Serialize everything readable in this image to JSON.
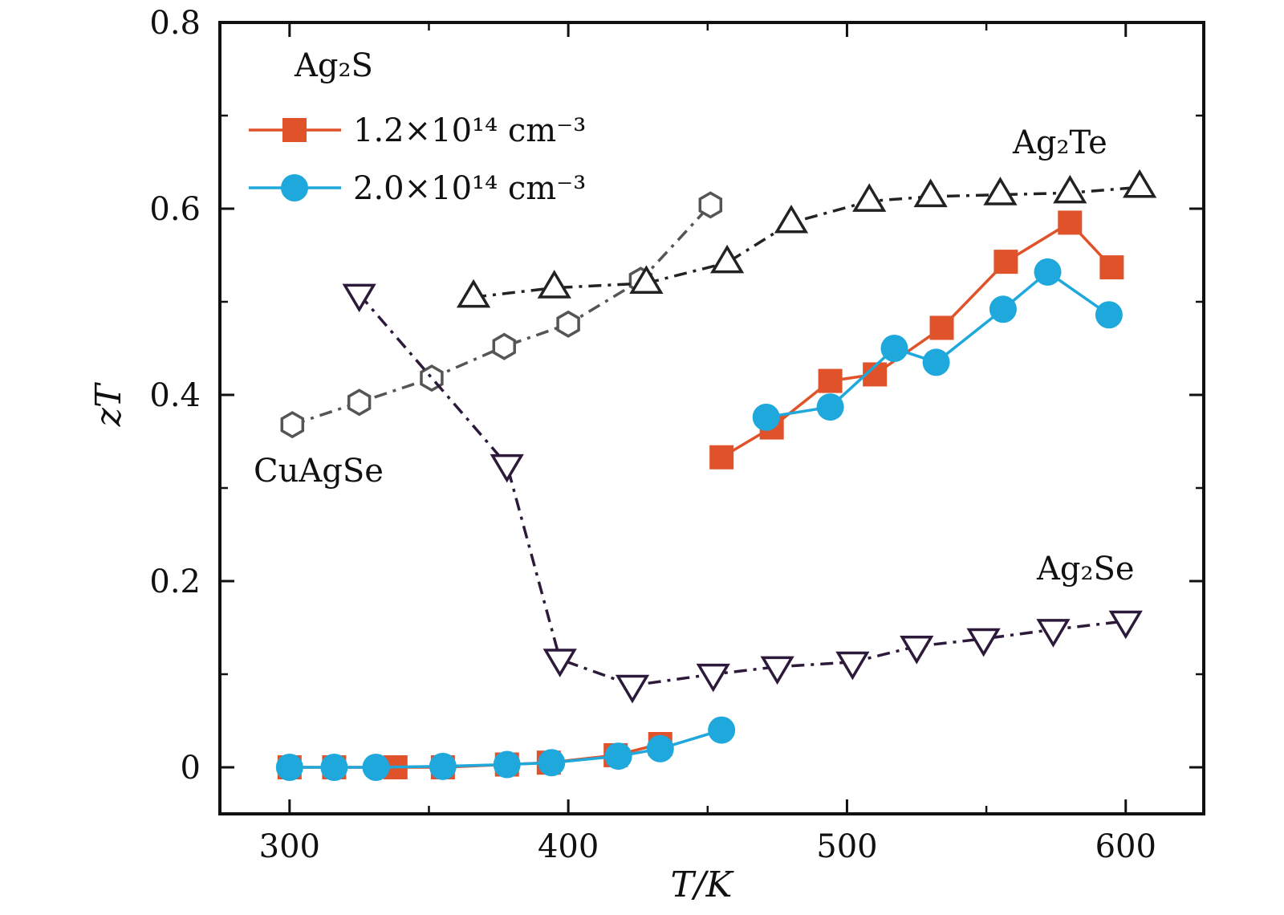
{
  "chart_data": {
    "type": "line",
    "xlabel": "T/K",
    "ylabel": "zT",
    "xlim": [
      275,
      628
    ],
    "ylim": [
      -0.05,
      0.8
    ],
    "xticks": [
      300,
      400,
      500,
      600
    ],
    "xtick_labels": [
      "300",
      "400",
      "500",
      "600"
    ],
    "yticks": [
      0,
      0.2,
      0.4,
      0.6,
      0.8
    ],
    "ytick_labels": [
      "0",
      "0.2",
      "0.4",
      "0.6",
      "0.8"
    ],
    "grid": false,
    "legend": {
      "placement": "top-left",
      "title": "Ag₂S",
      "entries": [
        "1.2×10¹⁴ cm⁻³",
        "2.0×10¹⁴ cm⁻³"
      ]
    },
    "annotations": [
      {
        "text": "CuAgSe"
      },
      {
        "text": "Ag₂Te"
      },
      {
        "text": "Ag₂Se"
      }
    ],
    "series": [
      {
        "name": "1.2×10¹⁴ cm⁻³",
        "color": "#e0522a",
        "marker": "square-filled",
        "segments": [
          {
            "x": [
              300,
              316,
              338,
              355,
              378,
              393,
              417,
              433
            ],
            "y": [
              0.0,
              0.0,
              0.0,
              0.0,
              0.003,
              0.005,
              0.013,
              0.025
            ]
          },
          {
            "x": [
              455,
              473,
              494,
              510,
              534,
              557,
              580,
              595
            ],
            "y": [
              0.333,
              0.365,
              0.415,
              0.422,
              0.472,
              0.543,
              0.585,
              0.537
            ]
          }
        ]
      },
      {
        "name": "2.0×10¹⁴ cm⁻³",
        "color": "#1ea8dc",
        "marker": "circle-filled",
        "segments": [
          {
            "x": [
              300,
              316,
              331,
              355,
              378,
              394,
              418,
              433,
              455
            ],
            "y": [
              0.0,
              0.0,
              0.0,
              0.001,
              0.003,
              0.005,
              0.012,
              0.02,
              0.04
            ]
          },
          {
            "x": [
              471,
              494,
              517,
              532,
              556,
              572,
              594
            ],
            "y": [
              0.376,
              0.387,
              0.45,
              0.435,
              0.492,
              0.532,
              0.486
            ]
          }
        ]
      },
      {
        "name": "CuAgSe",
        "color": "#555555",
        "marker": "hexagon-open",
        "dash": "dash-dot",
        "segments": [
          {
            "x": [
              301,
              325,
              351,
              377,
              400,
              426,
              451
            ],
            "y": [
              0.368,
              0.392,
              0.418,
              0.452,
              0.476,
              0.523,
              0.604
            ]
          }
        ]
      },
      {
        "name": "Ag₂Te",
        "color": "#222222",
        "marker": "triangle-up-open",
        "dash": "dash-dot",
        "segments": [
          {
            "x": [
              366,
              395,
              428,
              457,
              480,
              508,
              530,
              555,
              580,
              605
            ],
            "y": [
              0.505,
              0.515,
              0.52,
              0.542,
              0.585,
              0.608,
              0.613,
              0.615,
              0.617,
              0.623
            ]
          }
        ]
      },
      {
        "name": "Ag₂Se",
        "color": "#2d1a3a",
        "marker": "triangle-down-open",
        "dash": "dash-dot",
        "segments": [
          {
            "x": [
              325,
              378,
              397,
              423,
              452,
              475,
              502,
              525,
              549,
              574,
              600
            ],
            "y": [
              0.508,
              0.325,
              0.116,
              0.088,
              0.1,
              0.108,
              0.113,
              0.13,
              0.138,
              0.148,
              0.157
            ]
          }
        ]
      }
    ]
  }
}
